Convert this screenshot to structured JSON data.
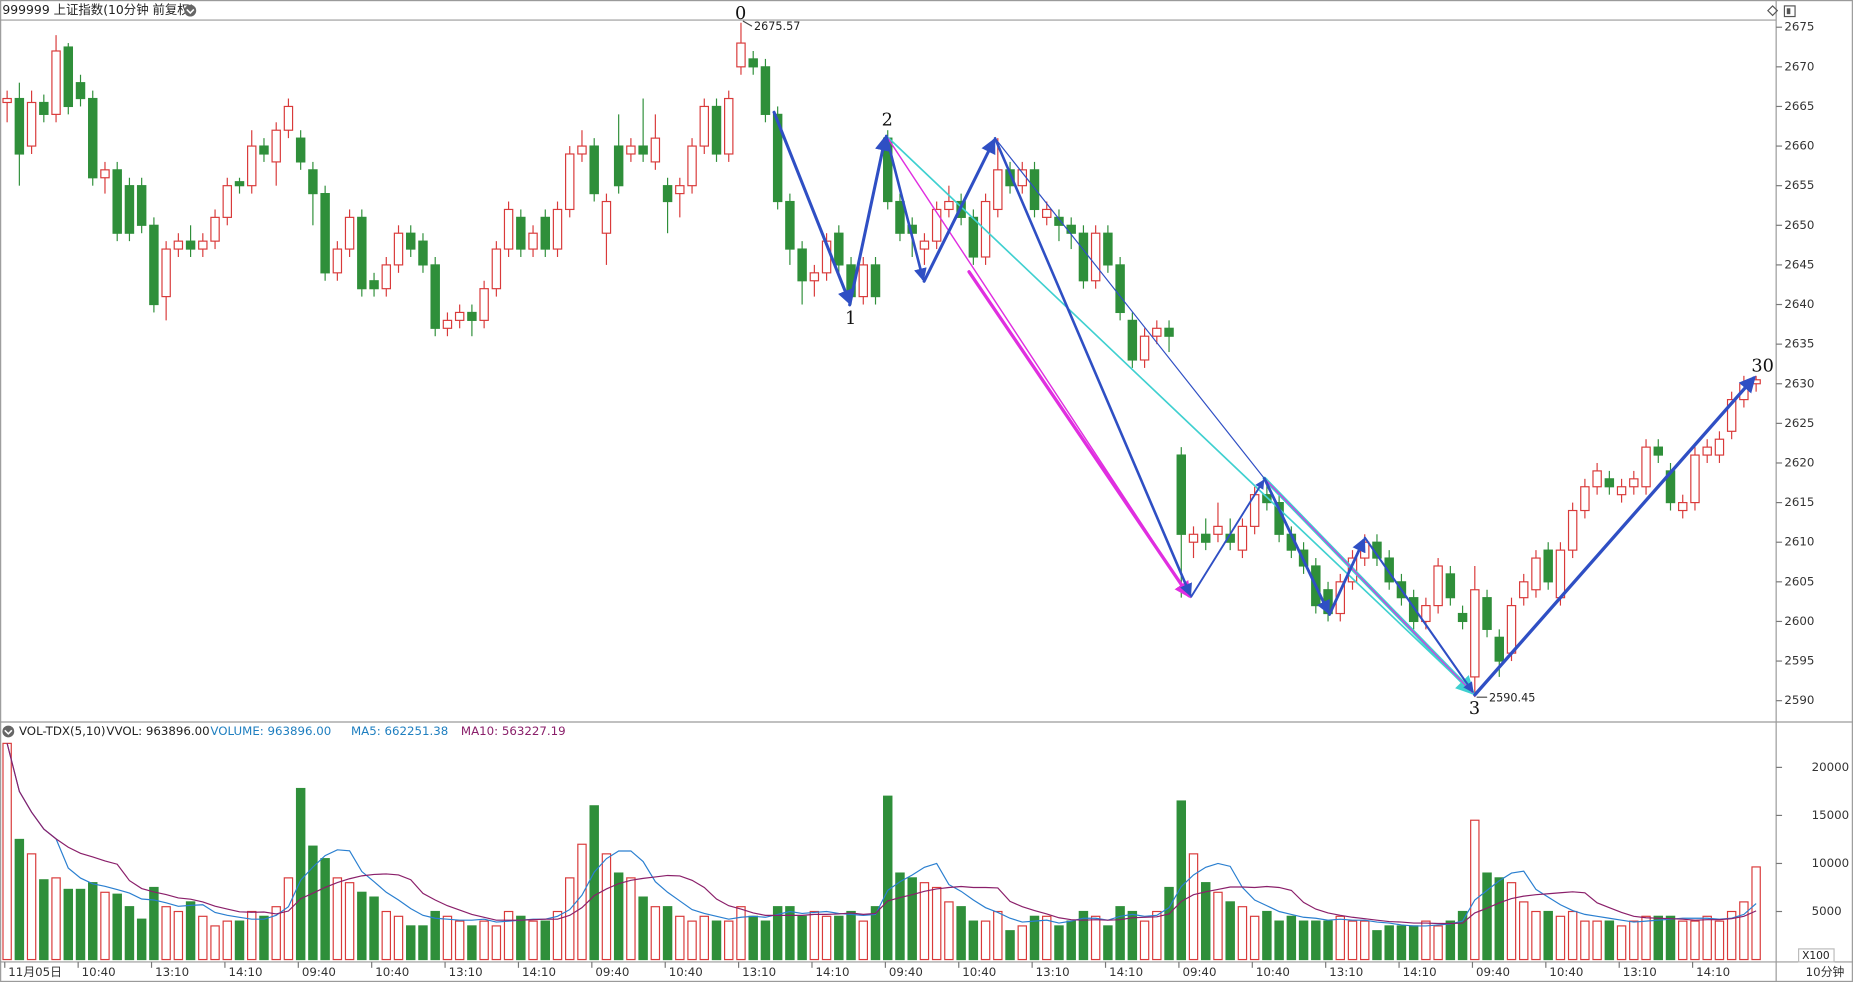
{
  "header": {
    "title": "999999 上证指数(10分钟 前复权)"
  },
  "chart_data": {
    "type": "candlestick",
    "open": [
      2665.5,
      2666,
      2660,
      2665.5,
      2664,
      2672.5,
      2668,
      2666,
      2656,
      2657,
      2655,
      2655,
      2650,
      2641,
      2647,
      2648,
      2647,
      2648,
      2651,
      2655.5,
      2655,
      2660,
      2658,
      2662,
      2661,
      2657,
      2654,
      2644,
      2647,
      2651,
      2643,
      2642,
      2645,
      2649,
      2648,
      2645,
      2637,
      2638,
      2639,
      2638,
      2642,
      2647,
      2651,
      2647,
      2651,
      2647,
      2652,
      2659,
      2660,
      2649,
      2660,
      2659,
      2660,
      2658,
      2655,
      2654,
      2655,
      2660,
      2665,
      2659,
      2670,
      2671,
      2670,
      2664,
      2653,
      2647,
      2643,
      2644,
      2649,
      2645,
      2641,
      2645,
      2661,
      2653,
      2650,
      2647,
      2648,
      2652,
      2653,
      2651,
      2646,
      2652,
      2657,
      2655,
      2657,
      2651,
      2651,
      2650,
      2649,
      2643,
      2649,
      2645,
      2638,
      2633,
      2636,
      2637,
      2621,
      2610,
      2611,
      2611,
      2611,
      2609,
      2612,
      2616,
      2615,
      2611,
      2609,
      2607,
      2604,
      2601,
      2605,
      2608,
      2610,
      2608,
      2605,
      2603,
      2600,
      2602,
      2606,
      2601,
      2593,
      2603,
      2598,
      2596,
      2603,
      2604,
      2609,
      2603,
      2609,
      2614,
      2617,
      2618,
      2616,
      2617,
      2617,
      2622,
      2619,
      2614,
      2615,
      2621,
      2621,
      2624,
      2628,
      2630
    ],
    "high": [
      2667,
      2668,
      2667,
      2666.5,
      2674,
      2673,
      2669,
      2667,
      2658,
      2658,
      2656,
      2656,
      2651,
      2648,
      2649,
      2650,
      2649,
      2652,
      2656,
      2656,
      2662,
      2661,
      2663,
      2666,
      2662,
      2658,
      2655,
      2648,
      2652,
      2652,
      2644,
      2646,
      2650,
      2650,
      2649,
      2646,
      2639,
      2640,
      2640,
      2643,
      2648,
      2653,
      2652,
      2650,
      2652,
      2653,
      2660,
      2662,
      2661,
      2654,
      2664,
      2661,
      2666,
      2664,
      2656,
      2656,
      2661,
      2666,
      2666,
      2667,
      2675.57,
      2672,
      2671,
      2665,
      2654,
      2648,
      2645,
      2649,
      2650,
      2646,
      2646,
      2646,
      2662,
      2654,
      2651,
      2649,
      2653,
      2655,
      2654,
      2652,
      2654,
      2661,
      2658,
      2658,
      2658,
      2653,
      2652,
      2651,
      2650,
      2650,
      2650,
      2646,
      2639,
      2637,
      2638,
      2638,
      2622,
      2612,
      2613,
      2615,
      2613,
      2613,
      2617,
      2618,
      2616,
      2612,
      2610,
      2608,
      2605,
      2606,
      2609,
      2611,
      2611,
      2609,
      2606,
      2604,
      2603,
      2608,
      2607,
      2602,
      2607,
      2604,
      2599,
      2603,
      2606,
      2609,
      2610,
      2610,
      2615,
      2618,
      2620,
      2619,
      2618,
      2619,
      2623,
      2623,
      2620,
      2616,
      2622,
      2623,
      2624,
      2629,
      2631,
      2631
    ],
    "low": [
      2663,
      2655,
      2659,
      2663,
      2663,
      2664,
      2665,
      2655,
      2654,
      2648,
      2648,
      2649,
      2639,
      2638,
      2646,
      2646,
      2646,
      2647,
      2650,
      2654,
      2654,
      2658,
      2655,
      2661,
      2657,
      2650,
      2643,
      2643,
      2646,
      2641,
      2641,
      2641,
      2644,
      2646,
      2644,
      2636,
      2636,
      2637,
      2636,
      2637,
      2641,
      2646,
      2646,
      2646,
      2646,
      2646,
      2651,
      2658,
      2653,
      2645,
      2654,
      2658,
      2658,
      2657,
      2649,
      2651,
      2654,
      2659,
      2658,
      2658,
      2669,
      2669,
      2663,
      2652,
      2645,
      2640,
      2641,
      2643,
      2644,
      2640,
      2640,
      2640,
      2652,
      2648,
      2646,
      2645,
      2647,
      2651,
      2650,
      2645,
      2645,
      2651,
      2654,
      2654,
      2651,
      2650,
      2648,
      2647,
      2642,
      2642,
      2644,
      2638,
      2632,
      2632,
      2635,
      2634,
      2603,
      2608,
      2609,
      2610,
      2609,
      2608,
      2611,
      2614,
      2610,
      2608,
      2606,
      2601,
      2600,
      2600,
      2604,
      2607,
      2607,
      2604,
      2602,
      2599,
      2599,
      2601,
      2602,
      2599,
      2590.45,
      2598,
      2593,
      2595,
      2602,
      2603,
      2604,
      2602,
      2608,
      2613,
      2616,
      2616,
      2615,
      2616,
      2616,
      2620,
      2614,
      2613,
      2614,
      2620,
      2620,
      2623,
      2627,
      2629
    ],
    "close": [
      2666,
      2659,
      2665.5,
      2664,
      2672,
      2665,
      2666,
      2656,
      2657,
      2649,
      2649,
      2650,
      2640,
      2647,
      2648,
      2647,
      2648,
      2651,
      2655,
      2655,
      2660,
      2659,
      2662,
      2665,
      2658,
      2654,
      2644,
      2647,
      2651,
      2642,
      2642,
      2645,
      2649,
      2647,
      2645,
      2637,
      2638,
      2639,
      2638,
      2642,
      2647,
      2652,
      2647,
      2649,
      2647,
      2652,
      2659,
      2660,
      2654,
      2653,
      2655,
      2660,
      2659,
      2661,
      2653,
      2655,
      2660,
      2665,
      2659,
      2666,
      2673,
      2670,
      2664,
      2653,
      2647,
      2643,
      2644,
      2648,
      2645,
      2641,
      2645,
      2641,
      2653,
      2649,
      2649,
      2648,
      2652,
      2653,
      2651,
      2646,
      2653,
      2657,
      2655,
      2657,
      2652,
      2652,
      2650,
      2649,
      2643,
      2649,
      2645,
      2639,
      2633,
      2636,
      2637,
      2636,
      2611,
      2611,
      2610,
      2612,
      2610,
      2612,
      2616,
      2615,
      2611,
      2609,
      2607,
      2602,
      2601,
      2605,
      2608,
      2610,
      2608,
      2605,
      2603,
      2600,
      2602,
      2607,
      2603,
      2600,
      2604,
      2599,
      2595,
      2602,
      2605,
      2608,
      2605,
      2609,
      2614,
      2617,
      2619,
      2617,
      2617,
      2618,
      2622,
      2621,
      2615,
      2615,
      2621,
      2622,
      2623,
      2628,
      2630,
      2630.5
    ],
    "ylim": [
      2588.2,
      2675.9
    ],
    "yticks": [
      2590,
      2595,
      2600,
      2605,
      2610,
      2615,
      2620,
      2625,
      2630,
      2635,
      2640,
      2645,
      2650,
      2655,
      2660,
      2665,
      2670,
      2675
    ],
    "xticks": [
      {
        "value": 0,
        "label": "11月05日"
      },
      {
        "value": 6,
        "label": "10:40"
      },
      {
        "value": 12,
        "label": "13:10"
      },
      {
        "value": 18,
        "label": "14:10"
      },
      {
        "value": 24,
        "label": "09:40"
      },
      {
        "value": 30,
        "label": "10:40"
      },
      {
        "value": 36,
        "label": "13:10"
      },
      {
        "value": 42,
        "label": "14:10"
      },
      {
        "value": 48,
        "label": "09:40"
      },
      {
        "value": 54,
        "label": "10:40"
      },
      {
        "value": 60,
        "label": "13:10"
      },
      {
        "value": 66,
        "label": "14:10"
      },
      {
        "value": 72,
        "label": "09:40"
      },
      {
        "value": 78,
        "label": "10:40"
      },
      {
        "value": 84,
        "label": "13:10"
      },
      {
        "value": 90,
        "label": "14:10"
      },
      {
        "value": 96,
        "label": "09:40"
      },
      {
        "value": 102,
        "label": "10:40"
      },
      {
        "value": 108,
        "label": "13:10"
      },
      {
        "value": 114,
        "label": "14:10"
      },
      {
        "value": 120,
        "label": "09:40"
      },
      {
        "value": 126,
        "label": "10:40"
      },
      {
        "value": 132,
        "label": "13:10"
      },
      {
        "value": 138,
        "label": "14:10"
      }
    ],
    "x_unit": "10分钟",
    "up_color": "#d93a3a",
    "down_color": "#2f8f3a",
    "annotations": {
      "wave_labels": [
        "0",
        "1",
        "2",
        "3",
        "30"
      ],
      "high_label": "2675.57",
      "low_label": "2590.45"
    },
    "volume_panel": {
      "type": "bar",
      "indicator": "VOL-TDX(5,10)",
      "vvol_label": "VVOL: 963896.00",
      "volume_label": "VOLUME: 963896.00",
      "ma5_label": "MA5: 662251.38",
      "ma10_label": "MA10: 563227.19",
      "ma_periods": [
        5,
        10
      ],
      "ma_colors": [
        "#2a7fd0",
        "#8a1f6a"
      ],
      "values": [
        22500,
        12500,
        11000,
        8300,
        8500,
        7300,
        7300,
        8000,
        7000,
        6800,
        5500,
        4200,
        7500,
        5500,
        5000,
        6000,
        4500,
        3500,
        4000,
        4000,
        5000,
        4500,
        5500,
        8500,
        17800,
        11800,
        10500,
        8500,
        8000,
        7000,
        6500,
        5000,
        4500,
        3500,
        3500,
        5000,
        4500,
        4000,
        3500,
        4000,
        3500,
        5000,
        4500,
        4000,
        4000,
        5000,
        8500,
        12000,
        16000,
        11000,
        9000,
        8500,
        6500,
        5500,
        5500,
        4500,
        4000,
        4500,
        4000,
        4000,
        5500,
        4500,
        4000,
        5500,
        5500,
        4500,
        5000,
        4500,
        4500,
        5000,
        4000,
        5500,
        17000,
        9000,
        8500,
        8000,
        7500,
        6000,
        5500,
        4000,
        4000,
        5000,
        3000,
        3500,
        4500,
        4500,
        3500,
        4000,
        5000,
        4500,
        3500,
        5500,
        5000,
        4000,
        5000,
        7500,
        16500,
        11000,
        8000,
        7000,
        6000,
        5500,
        4500,
        5000,
        4000,
        4500,
        4000,
        4000,
        4000,
        4500,
        4000,
        4000,
        3000,
        3500,
        3500,
        3500,
        4000,
        3500,
        4000,
        5000,
        14500,
        9000,
        8500,
        8000,
        6000,
        5000,
        5000,
        4500,
        5000,
        4000,
        4000,
        4000,
        3500,
        4000,
        4500,
        4500,
        4500,
        4000,
        4000,
        4500,
        4000,
        5000,
        6000,
        9639
      ],
      "ylim": [
        0,
        22630
      ],
      "yticks": [
        5000,
        10000,
        15000,
        20000
      ],
      "unit": "X100"
    }
  }
}
